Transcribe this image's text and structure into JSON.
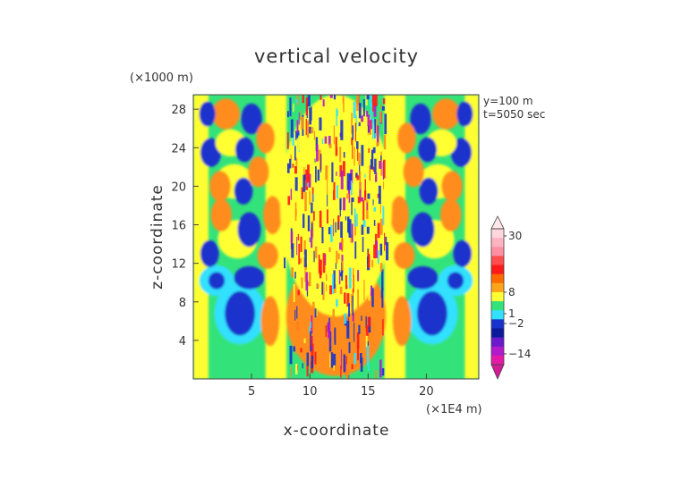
{
  "chart_data": {
    "type": "heatmap",
    "title": "vertical velocity",
    "xlabel": "x-coordinate",
    "ylabel": "z-coordinate",
    "x_unit": "(×1E4 m)",
    "y_unit": "(×1000 m)",
    "annotations": [
      "y=100  m",
      "t=5050  sec"
    ],
    "xlim": [
      0,
      24.5
    ],
    "ylim": [
      0,
      29.5
    ],
    "xticks": [
      5,
      10,
      15,
      20
    ],
    "yticks": [
      4,
      8,
      12,
      16,
      20,
      24,
      28
    ],
    "colorbar": {
      "ticks": [
        30,
        8,
        1,
        -2,
        -14
      ],
      "labels": [
        "30",
        "8",
        "1",
        "−2",
        "−14"
      ]
    },
    "colors": {
      "background_field": "#33e37a",
      "yellow": "#ffff33",
      "orange": "#ff8c1a",
      "red": "#ff1a1a",
      "cyan": "#33e0ff",
      "blue": "#1a33cc",
      "purple": "#b21acc",
      "magenta": "#e619a6",
      "pink": "#ffb3c0"
    }
  }
}
